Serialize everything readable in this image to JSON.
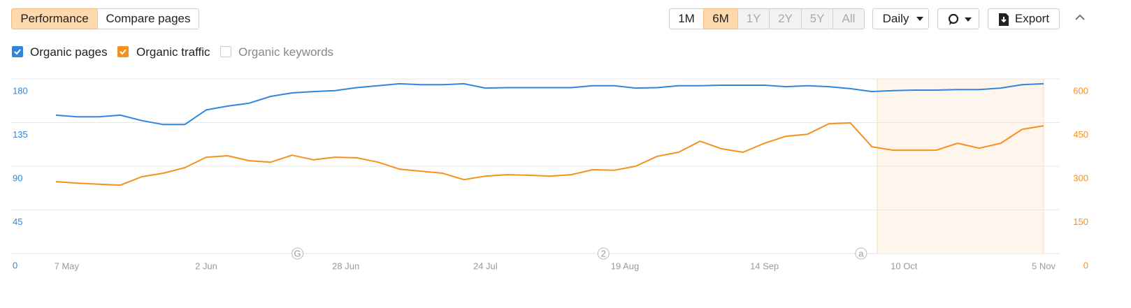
{
  "toolbar": {
    "tabs": [
      {
        "label": "Performance",
        "active": true
      },
      {
        "label": "Compare pages",
        "active": false
      }
    ],
    "periods": [
      {
        "label": "1M",
        "active": false,
        "disabled": false
      },
      {
        "label": "6M",
        "active": true,
        "disabled": false
      },
      {
        "label": "1Y",
        "active": false,
        "disabled": true
      },
      {
        "label": "2Y",
        "active": false,
        "disabled": true
      },
      {
        "label": "5Y",
        "active": false,
        "disabled": true
      },
      {
        "label": "All",
        "active": false,
        "disabled": true
      }
    ],
    "interval": "Daily",
    "export": "Export"
  },
  "chart_data": {
    "type": "line",
    "x": [
      "5 May",
      "9 May",
      "13 May",
      "17 May",
      "21 May",
      "25 May",
      "29 May",
      "2 Jun",
      "6 Jun",
      "10 Jun",
      "14 Jun",
      "18 Jun",
      "22 Jun",
      "26 Jun",
      "30 Jun",
      "4 Jul",
      "8 Jul",
      "12 Jul",
      "16 Jul",
      "20 Jul",
      "24 Jul",
      "28 Jul",
      "1 Aug",
      "5 Aug",
      "9 Aug",
      "13 Aug",
      "17 Aug",
      "21 Aug",
      "25 Aug",
      "29 Aug",
      "2 Sep",
      "6 Sep",
      "10 Sep",
      "14 Sep",
      "18 Sep",
      "22 Sep",
      "26 Sep",
      "30 Sep",
      "4 Oct",
      "8 Oct",
      "12 Oct",
      "16 Oct",
      "20 Oct",
      "24 Oct",
      "28 Oct",
      "1 Nov",
      "5 Nov"
    ],
    "series": [
      {
        "name": "Organic pages",
        "color": "#2e86de",
        "checked": true,
        "axis": "y",
        "values": [
          142.6,
          141,
          141,
          142.6,
          137,
          133,
          133,
          148,
          152,
          155,
          162,
          165.6,
          167,
          168,
          171,
          173,
          175,
          174,
          174,
          175,
          170.6,
          171,
          171,
          171,
          171,
          173,
          173,
          170.6,
          171,
          173,
          173,
          173.5,
          173.5,
          173.5,
          172,
          173,
          172,
          170,
          167,
          168,
          168.5,
          168.5,
          169,
          169,
          170.6,
          174,
          175
        ]
      },
      {
        "name": "Organic traffic",
        "color": "#f7901e",
        "checked": true,
        "axis": "y2",
        "values": [
          247,
          242,
          238,
          235,
          264,
          276,
          295,
          331,
          336,
          319,
          314,
          338,
          322,
          331,
          329,
          314,
          290,
          283,
          276,
          254,
          266,
          271,
          269,
          266,
          271,
          288,
          286,
          300,
          334,
          348,
          386,
          360,
          348,
          379,
          403,
          410,
          446,
          449,
          367,
          355,
          355,
          355,
          379,
          362,
          379,
          427,
          439
        ]
      }
    ],
    "inactive_series": [
      {
        "name": "Organic keywords",
        "checked": false
      }
    ],
    "xlim": [
      "5 May",
      "5 Nov"
    ],
    "xticks": [
      "7 May",
      "2 Jun",
      "28 Jun",
      "24 Jul",
      "19 Aug",
      "14 Sep",
      "10 Oct",
      "5 Nov"
    ],
    "ylim": [
      0,
      180
    ],
    "yticks": [
      0,
      45,
      90,
      135,
      180
    ],
    "y2lim": [
      0,
      600
    ],
    "y2ticks": [
      0,
      150,
      300,
      450,
      600
    ],
    "grid": true,
    "annotations": [
      {
        "label": "G",
        "x": "19 Jun"
      },
      {
        "label": "2",
        "x": "15 Aug"
      },
      {
        "label": "a",
        "x": "2 Oct"
      }
    ]
  }
}
